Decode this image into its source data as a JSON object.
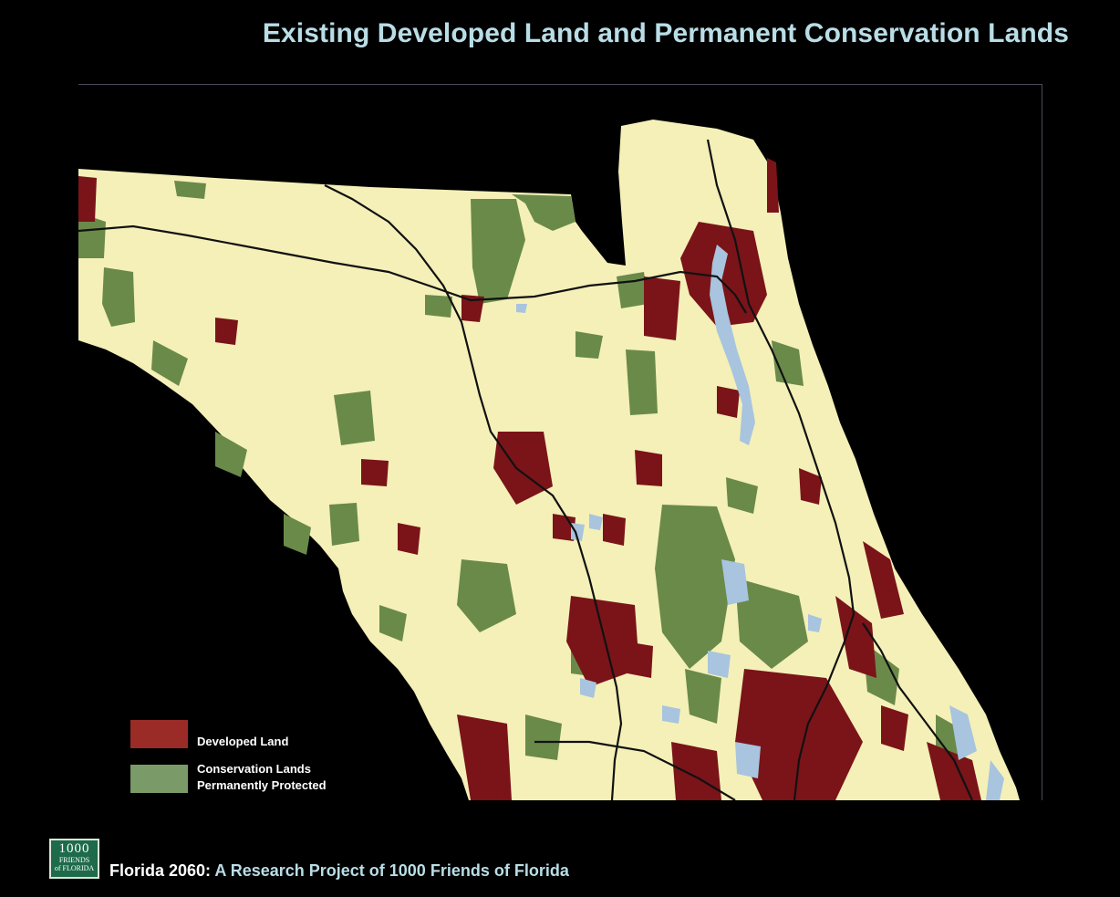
{
  "title": "Existing Developed Land and Permanent Conservation Lands",
  "colors": {
    "background": "#000000",
    "title": "#b9dde6",
    "land": "#f4f0b8",
    "developed": "#7a1419",
    "developed_legend": "#9b2b26",
    "conservation": "#6a8a4a",
    "conservation_legend": "#7a9a68",
    "water": "#a8c4de",
    "roads": "#111111",
    "footer_accent": "#b9dde6"
  },
  "map": {
    "region": "North and Central Florida"
  },
  "legend": {
    "developed_label": "Developed Land",
    "conservation_label_line1": "Conservation Lands",
    "conservation_label_line2": "Permanently Protected"
  },
  "logo": {
    "number": "1000",
    "line1": "FRIENDS",
    "line2": "of FLORIDA"
  },
  "footer": {
    "lead": "Florida 2060:",
    "rest": " A Research Project of 1000 Friends of Florida"
  }
}
